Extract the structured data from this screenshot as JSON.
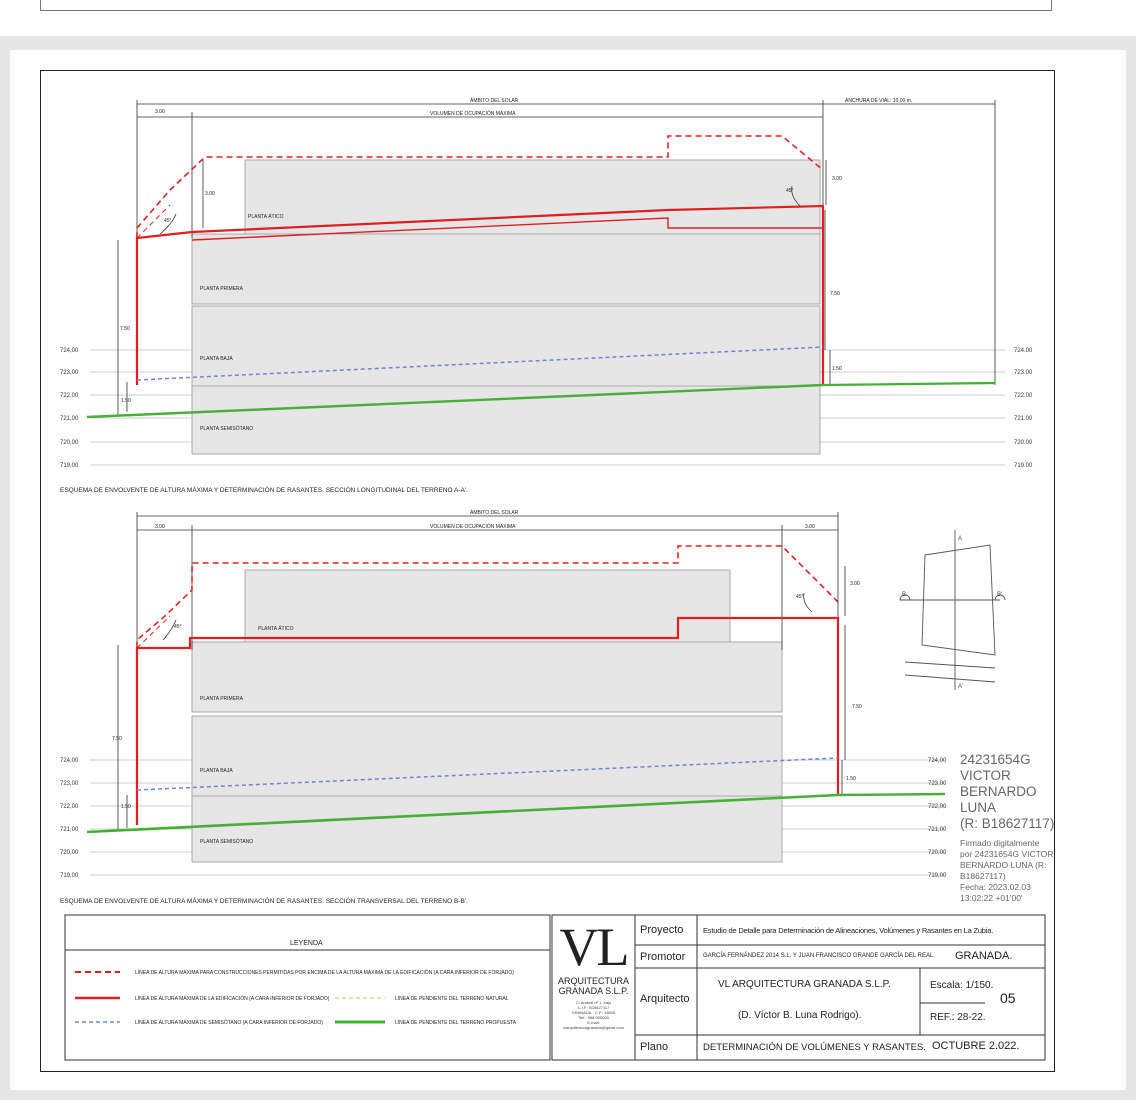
{
  "section_a": {
    "caption": "ESQUEMA DE ENVOLVENTE DE ALTURA MÁXIMA Y DETERMINACIÓN DE RASANTES. SECCIÓN LONGITUDINAL DEL TERRENO A-A'.",
    "ambito": "ÁMBITO DEL SOLAR",
    "volumen": "VOLUMEN DE OCUPACIÓN MÁXIMA",
    "anchura_vial": "ANCHURA DE VIAL: 10,00 m.",
    "dims": {
      "setback": "3.00",
      "height_left": "3.00",
      "height_right": "3.00",
      "total_left": "7.50",
      "total_right": "7.50",
      "small_left": "1.50",
      "small_right": "1.50",
      "angle_left": "45°",
      "angle_right": "45°"
    },
    "floors": {
      "atico": "PLANTA ÁTICO",
      "primera": "PLANTA PRIMERA",
      "baja": "PLANTA BAJA",
      "semisotano": "PLANTA SEMISÓTANO"
    }
  },
  "section_b": {
    "caption": "ESQUEMA DE ENVOLVENTE DE ALTURA MÁXIMA Y DETERMINACIÓN DE RASANTES. SECCIÓN TRANSVERSAL DEL TERRENO B-B'.",
    "ambito": "ÁMBITO DEL SOLAR",
    "volumen": "VOLUMEN DE OCUPACIÓN MÁXIMA",
    "dims": {
      "setback_left": "3.00",
      "setback_right": "3.00",
      "height_right": "3.00",
      "total_left": "7.50",
      "total_right": "7.50",
      "small_left": "1.50",
      "small_right": "1.50",
      "angle_left": "45°",
      "angle_right": "45°"
    },
    "floors": {
      "atico": "PLANTA ÁTICO",
      "primera": "PLANTA PRIMERA",
      "baja": "PLANTA BAJA",
      "semisotano": "PLANTA SEMISÓTANO"
    }
  },
  "levels": [
    "724,00",
    "723,00",
    "722,00",
    "721,00",
    "720,00",
    "719,00"
  ],
  "levels_right_a": [
    "724.00",
    "723.00",
    "722.00",
    "721.00",
    "720.00",
    "719.00"
  ],
  "key_plan": {
    "a_top": "A",
    "a_bottom": "A'",
    "b_left": "B",
    "b_right": "B'"
  },
  "signature": {
    "id": "24231654G",
    "name1": "VICTOR",
    "name2": "BERNARDO LUNA",
    "reg": "(R: B18627117)",
    "l1": "Firmado digitalmente",
    "l2": "por 24231654G VICTOR",
    "l3": "BERNARDO LUNA (R:",
    "l4": "B18627117)",
    "l5": "Fecha: 2023.02.03",
    "l6": "13:02:22 +01'00'"
  },
  "legend": {
    "title": "LEYENDA",
    "item1": "LÍNEA DE ALTURA MÁXIMA PARA CONSTRUCCIONES PERMITIDAS POR ENCIMA DE LA ALTURA MÁXIMA DE LA EDIFICACIÓN (A CARA INFERIOR DE FORJADO)",
    "item2": "LÍNEA DE ALTURA MÁXIMA DE LA EDIFICACIÓN (A CARA INFERIOR DE FORJADO)",
    "item3": "LÍNEA DE PENDIENTE DEL TERRENO NATURAL",
    "item4": "LÍNEA DE ALTURA MÁXIMA DE SEMISÓTANO (A CARA INFERIOR DE FORJADO)",
    "item5": "LÍNEA DE PENDIENTE DEL TERRENO PROPUESTA"
  },
  "logo": {
    "mark": "VL",
    "line1": "ARQUITECTURA",
    "line2": "GRANADA S.L.P.",
    "c1": "C/ Arabial nº 1, bajo",
    "c2": "C.I.F.: B18627117",
    "c3": "GRANADA · C.P.: 18005",
    "c4": "Telf.: 958 000000",
    "c5": "E-mail:",
    "c6": "vlarquitecturagranada@gmail.com"
  },
  "title_block": {
    "proyecto_label": "Proyecto",
    "proyecto": "Estudio de Detalle para Determinación de Alineaciones, Volúmenes y Rasantes en La Zubia.",
    "promotor_label": "Promotor",
    "promotor": "GARCÍA FERNÁNDEZ 2014 S.L. Y JUAN FRANCISCO GRANDE GARCÍA DEL REAL",
    "city": "GRANADA.",
    "arquitecto_label": "Arquitecto",
    "arquitecto1": "VL ARQUITECTURA GRANADA S.L.P.",
    "arquitecto2": "(D. Víctor B. Luna Rodrigo).",
    "escala": "Escala: 1/150.",
    "ref": "REF.: 28-22.",
    "sheet_no": "05",
    "plano_label": "Plano",
    "plano": "DETERMINACIÓN DE VOLÚMENES Y RASANTES.",
    "fecha": "OCTUBRE 2.022."
  },
  "colors": {
    "red": "#e02020",
    "green": "#45b035",
    "blue": "#6c86d8",
    "grey": "#dcdcdc"
  }
}
